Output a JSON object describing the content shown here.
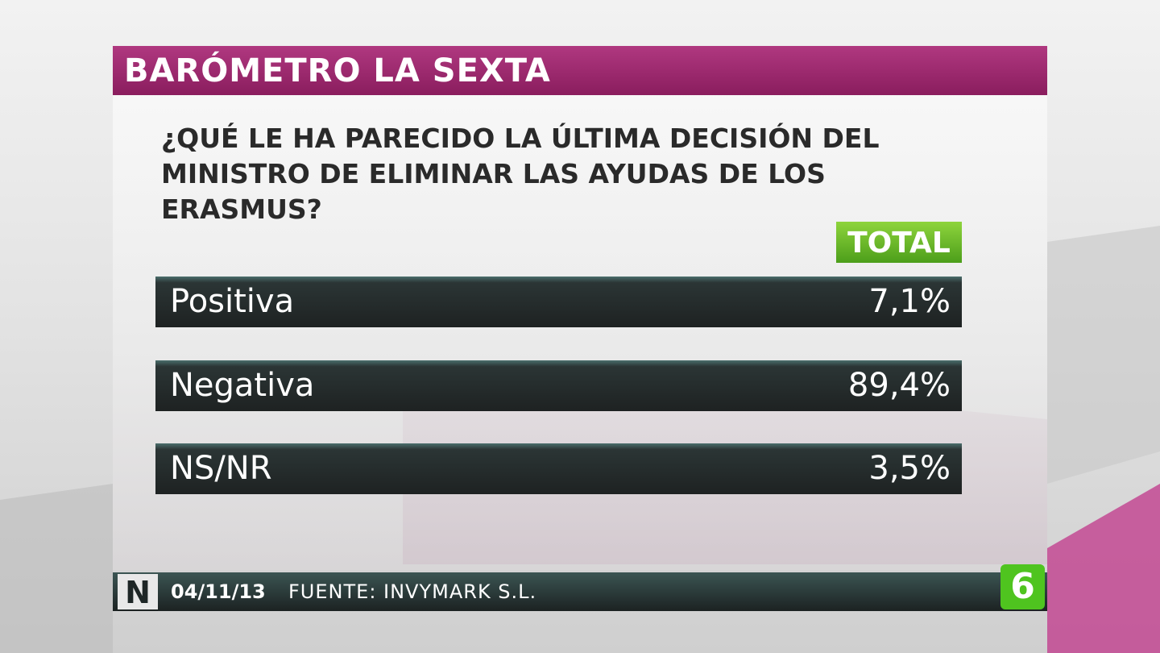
{
  "header": {
    "title": "BARÓMETRO LA SEXTA"
  },
  "question": "¿QUÉ LE HA PARECIDO LA ÚLTIMA DECISIÓN DEL MINISTRO DE ELIMINAR LAS AYUDAS DE LOS ERASMUS?",
  "table": {
    "column_header": "TOTAL",
    "rows": [
      [
        "Positiva",
        "7,1%"
      ],
      [
        "Negativa",
        "89,4%"
      ],
      [
        "NS/NR",
        "3,5%"
      ]
    ]
  },
  "footer": {
    "badge": "N",
    "date": "04/11/13",
    "source": "FUENTE: INVYMARK S.L.",
    "logo": "6"
  }
}
